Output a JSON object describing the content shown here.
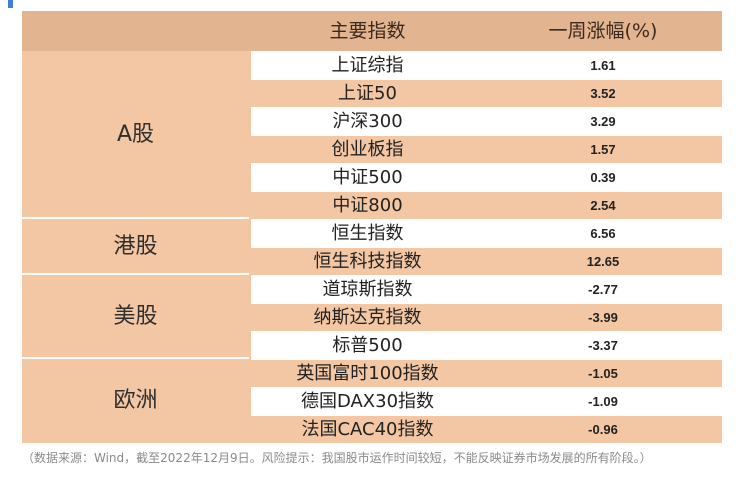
{
  "header": {
    "col_index": "主要指数",
    "col_change": "一周涨幅(%)"
  },
  "groups": [
    {
      "label": "A股"
    },
    {
      "label": "港股"
    },
    {
      "label": "美股"
    },
    {
      "label": "欧洲"
    }
  ],
  "rows": [
    {
      "name": "上证综指",
      "value": "1.61"
    },
    {
      "name": "上证50",
      "value": "3.52"
    },
    {
      "name": "沪深300",
      "value": "3.29"
    },
    {
      "name": "创业板指",
      "value": "1.57"
    },
    {
      "name": "中证500",
      "value": "0.39"
    },
    {
      "name": "中证800",
      "value": "2.54"
    },
    {
      "name": "恒生指数",
      "value": "6.56"
    },
    {
      "name": "恒生科技指数",
      "value": "12.65"
    },
    {
      "name": "道琼斯指数",
      "value": "-2.77"
    },
    {
      "name": "纳斯达克指数",
      "value": "-3.99"
    },
    {
      "name": "标普500",
      "value": "-3.37"
    },
    {
      "name": "英国富时100指数",
      "value": "-1.05"
    },
    {
      "name": "德国DAX30指数",
      "value": "-1.09"
    },
    {
      "name": "法国CAC40指数",
      "value": "-0.96"
    }
  ],
  "note": "（数据来源：Wind，截至2022年12月9日。风险提示：我国股市运作时间较短，不能反映证券市场发展的所有阶段。）",
  "colors": {
    "header": "#e2b48f",
    "band": "#f3c7a3",
    "accent": "#3f7fd6"
  }
}
